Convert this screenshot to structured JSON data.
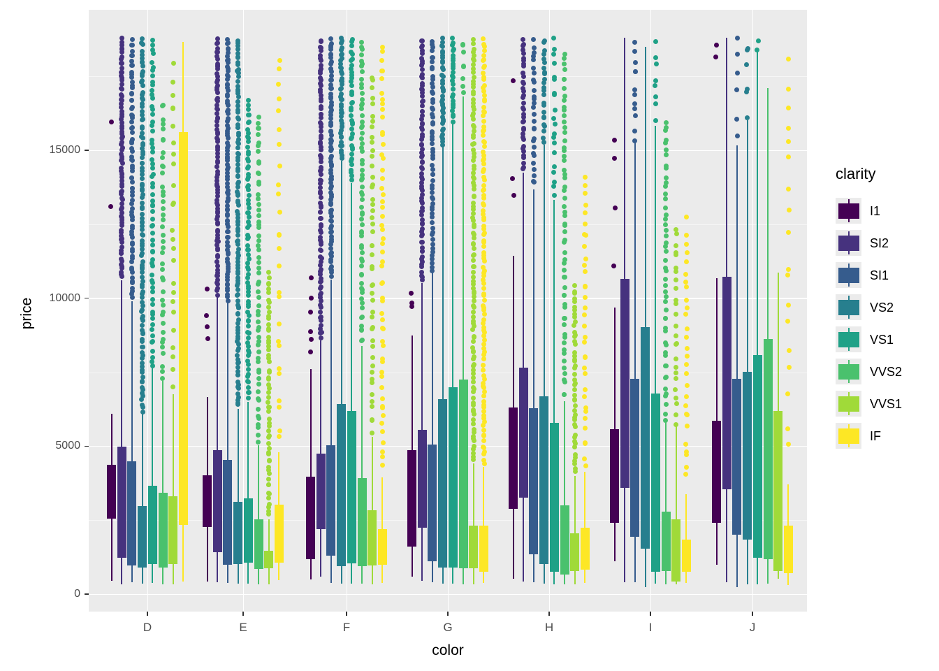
{
  "axes": {
    "x_title": "color",
    "y_title": "price",
    "y_tick_labels": [
      "0",
      "5000",
      "10000",
      "15000"
    ],
    "y_tick_values": [
      0,
      5000,
      10000,
      15000
    ],
    "y_minor_values": [
      2500,
      7500,
      12500,
      17500
    ],
    "x_tick_labels": [
      "D",
      "E",
      "F",
      "G",
      "H",
      "I",
      "J"
    ]
  },
  "legend": {
    "title": "clarity",
    "items": [
      {
        "label": "I1",
        "color": "#440154"
      },
      {
        "label": "SI2",
        "color": "#46327E"
      },
      {
        "label": "SI1",
        "color": "#365C8D"
      },
      {
        "label": "VS2",
        "color": "#277F8E"
      },
      {
        "label": "VS1",
        "color": "#1FA187"
      },
      {
        "label": "VVS2",
        "color": "#4AC16D"
      },
      {
        "label": "VVS1",
        "color": "#A0DA39"
      },
      {
        "label": "IF",
        "color": "#FDE725"
      }
    ]
  },
  "chart_data": {
    "type": "grouped_boxplot",
    "x": "color",
    "y": "price",
    "fill": "clarity",
    "ylim": [
      0,
      18900
    ],
    "grid": true,
    "legend_position": "right",
    "clarity_levels": [
      "I1",
      "SI2",
      "SI1",
      "VS2",
      "VS1",
      "VVS2",
      "VVS1",
      "IF"
    ],
    "box_stats_format": [
      "q1",
      "q3",
      "whisker_low",
      "whisker_high",
      "outlier_min",
      "outlier_max",
      "outlier_count"
    ],
    "groups": [
      {
        "color": "D",
        "boxes": [
          [
            2550,
            4370,
            450,
            6100,
            13100,
            15950,
            2
          ],
          [
            1230,
            4985,
            330,
            10600,
            10650,
            18800,
            85
          ],
          [
            980,
            4490,
            400,
            9900,
            9950,
            18800,
            75
          ],
          [
            900,
            2980,
            357,
            6100,
            6150,
            18800,
            110
          ],
          [
            1020,
            3660,
            380,
            7620,
            7650,
            18800,
            65
          ],
          [
            900,
            3430,
            340,
            7200,
            7250,
            16700,
            42
          ],
          [
            1020,
            3310,
            340,
            6750,
            6800,
            18200,
            25
          ],
          [
            2350,
            15610,
            430,
            18650,
            0,
            0,
            0
          ]
        ]
      },
      {
        "color": "E",
        "boxes": [
          [
            2270,
            4020,
            425,
            6650,
            8000,
            10350,
            4
          ],
          [
            1420,
            4870,
            400,
            10030,
            10080,
            18800,
            90
          ],
          [
            990,
            4540,
            380,
            9850,
            9900,
            18800,
            95
          ],
          [
            1020,
            3120,
            360,
            6270,
            6300,
            18800,
            115
          ],
          [
            1060,
            3240,
            354,
            6500,
            6550,
            16700,
            80
          ],
          [
            850,
            2530,
            336,
            5040,
            5080,
            16300,
            60
          ],
          [
            875,
            1460,
            336,
            2530,
            2560,
            10900,
            60
          ],
          [
            1060,
            3025,
            470,
            4800,
            4850,
            18500,
            26
          ]
        ]
      },
      {
        "color": "F",
        "boxes": [
          [
            1180,
            3970,
            496,
            7600,
            8000,
            10680,
            6
          ],
          [
            2200,
            4750,
            590,
            8570,
            8620,
            18800,
            95
          ],
          [
            1300,
            5030,
            380,
            10630,
            10680,
            18800,
            85
          ],
          [
            945,
            6430,
            360,
            14650,
            14700,
            18800,
            45
          ],
          [
            1040,
            6190,
            354,
            13900,
            13950,
            18800,
            40
          ],
          [
            945,
            3920,
            354,
            8380,
            8430,
            18800,
            65
          ],
          [
            970,
            2835,
            336,
            5315,
            5360,
            17650,
            48
          ],
          [
            990,
            2200,
            369,
            3945,
            4180,
            18750,
            55
          ]
        ]
      },
      {
        "color": "G",
        "boxes": [
          [
            1600,
            4865,
            590,
            8740,
            9640,
            10200,
            3
          ],
          [
            2245,
            5550,
            449,
            10510,
            10560,
            18800,
            80
          ],
          [
            1110,
            5055,
            402,
            10860,
            10900,
            18800,
            60
          ],
          [
            900,
            6590,
            354,
            15130,
            15180,
            18800,
            40
          ],
          [
            900,
            7000,
            354,
            15900,
            15950,
            18800,
            28
          ],
          [
            875,
            7250,
            336,
            16820,
            16850,
            18800,
            8
          ],
          [
            875,
            2315,
            336,
            4420,
            4460,
            18800,
            115
          ],
          [
            756,
            2315,
            369,
            4300,
            4350,
            18800,
            115
          ]
        ]
      },
      {
        "color": "H",
        "boxes": [
          [
            2880,
            6310,
            520,
            11440,
            12400,
            17350,
            3
          ],
          [
            3260,
            7650,
            425,
            14240,
            14300,
            18800,
            38
          ],
          [
            1345,
            6280,
            402,
            13680,
            13730,
            18800,
            28
          ],
          [
            1015,
            6685,
            354,
            15190,
            15240,
            18800,
            24
          ],
          [
            756,
            5790,
            336,
            13330,
            13380,
            18800,
            20
          ],
          [
            660,
            3000,
            336,
            6510,
            6560,
            18400,
            60
          ],
          [
            780,
            2055,
            336,
            4000,
            4050,
            10440,
            48
          ],
          [
            827,
            2245,
            369,
            4130,
            4200,
            14200,
            34
          ]
        ]
      },
      {
        "color": "I",
        "boxes": [
          [
            2410,
            5575,
            1110,
            9685,
            10580,
            16100,
            4
          ],
          [
            3590,
            10650,
            402,
            18800,
            0,
            0,
            0
          ],
          [
            1937,
            7275,
            402,
            15280,
            15330,
            18800,
            12
          ],
          [
            1535,
            9025,
            236,
            18500,
            0,
            0,
            0
          ],
          [
            756,
            6780,
            354,
            15820,
            15870,
            18800,
            8
          ],
          [
            780,
            2790,
            336,
            5810,
            5860,
            16100,
            50
          ],
          [
            425,
            2530,
            336,
            5680,
            5730,
            12550,
            25
          ],
          [
            756,
            1842,
            369,
            3380,
            3800,
            12750,
            28
          ]
        ]
      },
      {
        "color": "J",
        "boxes": [
          [
            2410,
            5860,
            992,
            10680,
            18000,
            18550,
            2
          ],
          [
            3545,
            10725,
            402,
            18800,
            0,
            0,
            0
          ],
          [
            2008,
            7275,
            236,
            15170,
            15220,
            18800,
            6
          ],
          [
            1842,
            7510,
            336,
            16010,
            16060,
            18800,
            6
          ],
          [
            1228,
            8078,
            336,
            18350,
            18400,
            18800,
            2
          ],
          [
            1180,
            8620,
            354,
            17100,
            0,
            0,
            0
          ],
          [
            780,
            6190,
            520,
            10870,
            0,
            0,
            0
          ],
          [
            709,
            2315,
            307,
            3710,
            4500,
            18700,
            18
          ]
        ]
      }
    ]
  }
}
